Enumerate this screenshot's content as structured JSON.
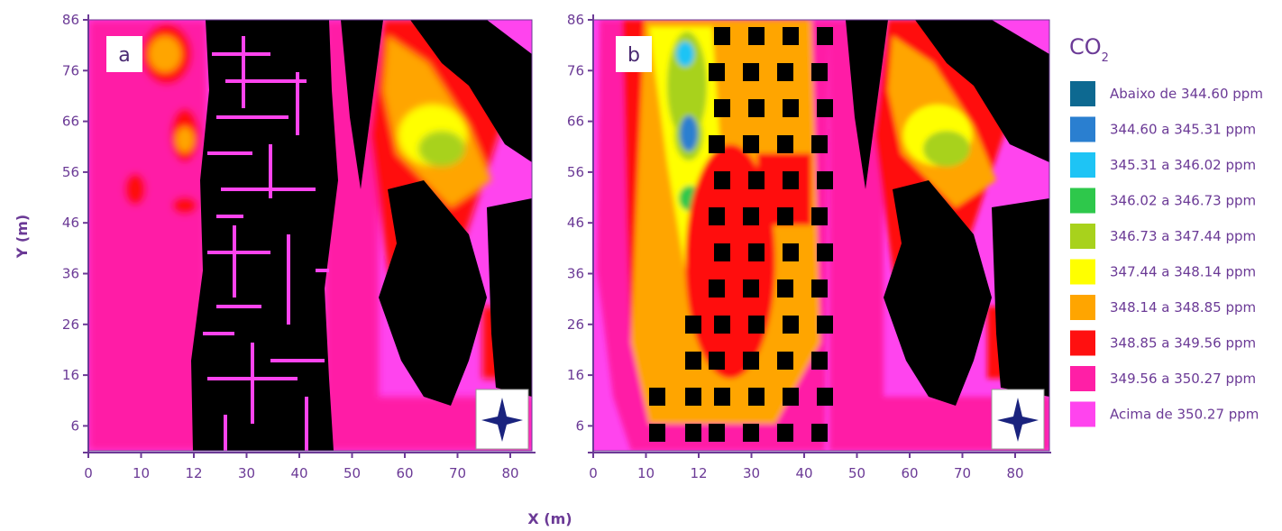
{
  "chart_data": {
    "type": "heatmap",
    "xlabel": "X (m)",
    "ylabel": "Y (m)",
    "x_ticks": [
      "0",
      "10",
      "12",
      "30",
      "40",
      "50",
      "60",
      "70",
      "80"
    ],
    "y_ticks": [
      "86",
      "76",
      "66",
      "56",
      "46",
      "36",
      "26",
      "16",
      "6"
    ],
    "xlim": [
      0,
      86
    ],
    "ylim": [
      0,
      86
    ],
    "panels": [
      {
        "label": "a"
      },
      {
        "label": "b"
      }
    ],
    "legend": {
      "title": "CO",
      "title_subscript": "2",
      "position": "right",
      "entries": [
        {
          "label": "Abaixo de 344.60 ppm",
          "color": "#0d6991"
        },
        {
          "label": "344.60 a 345.31 ppm",
          "color": "#2a7fd0"
        },
        {
          "label": "345.31 a 346.02 ppm",
          "color": "#1ec4f5"
        },
        {
          "label": "346.02 a 346.73 ppm",
          "color": "#2ec84b"
        },
        {
          "label": "346.73 a 347.44 ppm",
          "color": "#a8d21c"
        },
        {
          "label": "347.44 a 348.14 ppm",
          "color": "#ffff00"
        },
        {
          "label": "348.14 a 348.85 ppm",
          "color": "#ffa500"
        },
        {
          "label": "348.85 a 349.56 ppm",
          "color": "#ff1010"
        },
        {
          "label": "349.56 a 350.27 ppm",
          "color": "#ff1fa6"
        },
        {
          "label": "Acima de 350.27 ppm",
          "color": "#ff44ee"
        }
      ]
    }
  }
}
